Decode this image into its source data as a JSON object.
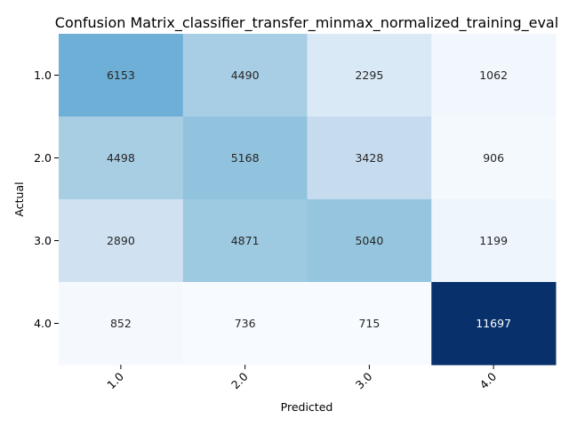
{
  "chart_data": {
    "type": "heatmap",
    "title": "Confusion Matrix_classifier_transfer_minmax_normalized_training_eval",
    "xlabel": "Predicted",
    "ylabel": "Actual",
    "x_categories": [
      "1.0",
      "2.0",
      "3.0",
      "4.0"
    ],
    "y_categories": [
      "1.0",
      "2.0",
      "3.0",
      "4.0"
    ],
    "values": [
      [
        6153,
        4490,
        2295,
        1062
      ],
      [
        4498,
        5168,
        3428,
        906
      ],
      [
        2890,
        4871,
        5040,
        1199
      ],
      [
        852,
        736,
        715,
        11697
      ]
    ],
    "colormap": "Blues",
    "colorbar": false,
    "annotations": true
  }
}
